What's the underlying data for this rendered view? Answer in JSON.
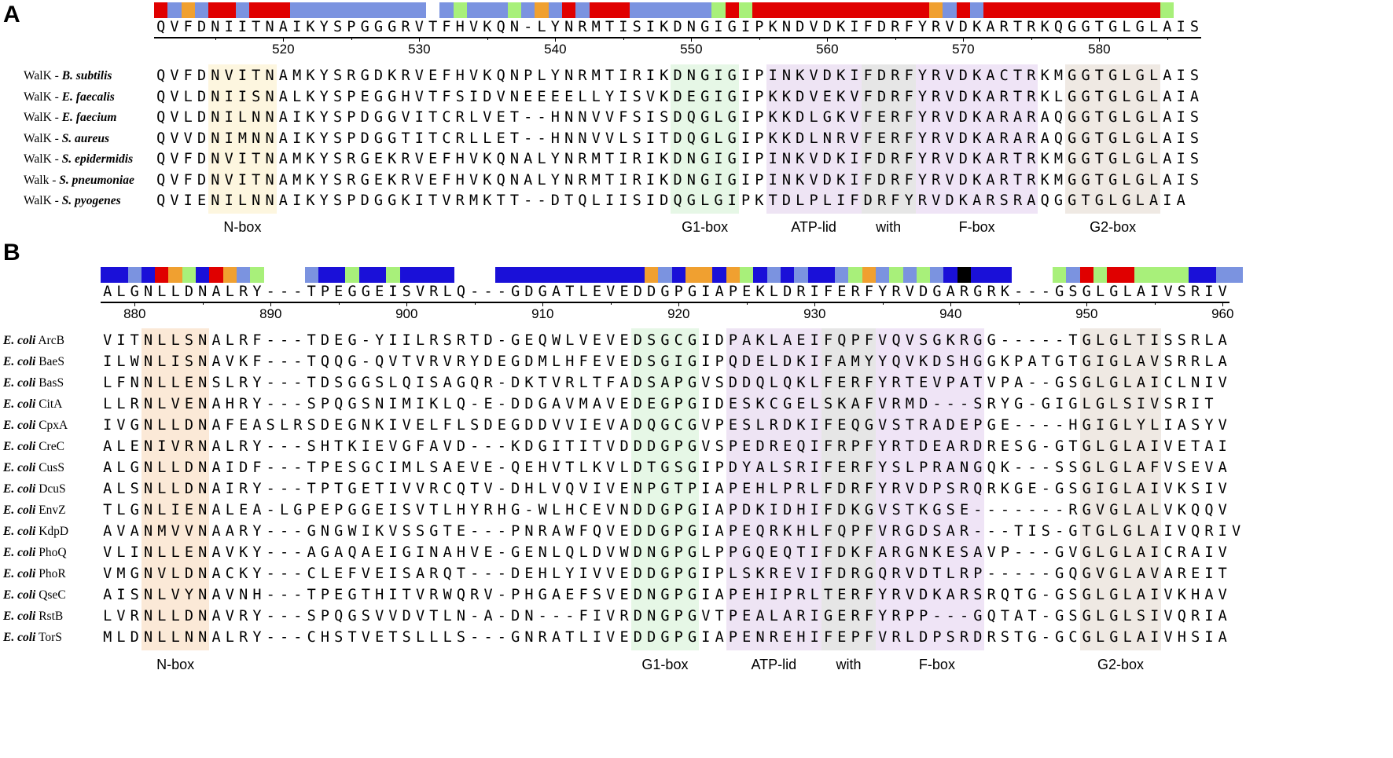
{
  "colors": {
    "red": "#e00000",
    "lightblue": "#7b93e0",
    "orange": "#f0a030",
    "lightgreen": "#a8f07a",
    "darkblue": "#1a10d8",
    "black": "#000000",
    "nbox_A": "#fdf6df",
    "nbox_B": "#fbe9d7",
    "g1box": "#e6f7e6",
    "atplid": "#eee4f4",
    "with": "#e6e6e6",
    "fbox": "#efe4f6",
    "g2box": "#efe9e3"
  },
  "panel_a": {
    "letter": "A",
    "consensus": "QVFDNIITNAIKYSPGGGRVTFHVKQN-LYNRMTISIKDNGIGIPKNDVDKIFDRFYRVDKARTRKQGGTGLGLAIS",
    "bar_segments": "rbobrrbrrrbbbbbbbbbb_bgbbbgbobrbrrrbbbbbbgrgrrrrrrrrrrrrrobrbrrrrrrrrrrrrrg",
    "ticks": [
      "520",
      "530",
      "540",
      "550",
      "560",
      "570",
      "580"
    ],
    "rows": [
      {
        "prefix": "WalK - ",
        "species": "B. subtilis",
        "seq": "QVFDNVITNAMKYSRGDKRVEFHVKQNPLYNRMTIRIKDNGIGIPINKVDKIFDRFYRVDKACTRKMGGTGLGLAIS"
      },
      {
        "prefix": "WalK - ",
        "species": "E. faecalis",
        "seq": "QVLDNIISNALKYSPEGGHVTFSIDVNEEEELLYISVKDEGIGIPKKDVEKVFDRFYRVDKARTRKLGGTGLGLAIA"
      },
      {
        "prefix": "WalK  - ",
        "species": "E. faecium",
        "seq": "QVLDNILNNAIKYSPDGGVITCRLVET--HNNVVFSISDQGLGIPKKDLGKVFERFYRVDKARARAQGGTGLGLAIS"
      },
      {
        "prefix": "WalK  - ",
        "species": "S. aureus",
        "seq": "QVVDNIMNNAIKYSPDGGTITCRLLET--HNNVVLSITDQGLGIPKKDLNRVFERFYRVDKARARAQGGTGLGLAIS"
      },
      {
        "prefix": "WalK - ",
        "species": "S. epidermidis",
        "seq": "QVFDNVITNAMKYSRGEKRVEFHVKQNALYNRMTIRIKDNGIGIPINKVDKIFDRFYRVDKARTRKMGGTGLGLAIS"
      },
      {
        "prefix": "Walk - ",
        "species": "S. pneumoniae",
        "seq": "QVFDNVITNAMKYSRGEKRVEFHVKQNALYNRMTIRIKDNGIGIPINKVDKIFDRFYRVDKARTRKMGGTGLGLAIS"
      },
      {
        "prefix": "WalK - ",
        "species": "S. pyogenes",
        "seq": "QVIENILNNAIKYSPDGGKITVRMKTT--DTQLIISIDQGLGIPKTDLPLIFDRFYRVDKARSRAQGGTGLGLAIA"
      }
    ],
    "box_labels": [
      "N-box",
      "G1-box",
      "ATP-lid",
      "with",
      "F-box",
      "G2-box"
    ]
  },
  "panel_b": {
    "letter": "B",
    "consensus": "ALGNLLDNALRY---TPEGGEISVRLQ---GDGATLEVEDDGPGIAPEKLDRIFERFYRVDGARGRK---GSGLGLAIVSRIV",
    "bar_segments": "ddbdrogdrobg___bddgddgdddd___dddddddddddobdoodogdbdbddbgobgbgbdkddd___gbrgrrggggddbb",
    "ticks": [
      "880",
      "890",
      "900",
      "910",
      "920",
      "930",
      "940",
      "950",
      "960"
    ],
    "rows": [
      {
        "prefix": "E. coli",
        "name": "ArcB",
        "seq": "VITNLLSNALRF---TDEG-YIILRSRTD-GEQWLVEVEDSGCGIDPAKLAEIFQPFVQVSGKRGG-----TGLGLTISSRLA"
      },
      {
        "prefix": "E. coli",
        "name": "BaeS",
        "seq": "ILWNLISNAVKF---TQQG-QVTVRVRYDEGDMLHFEVEDSGIGIPQDELDKIFAMYYQVKDSHGGKPATGTGIGLAVSRRLA"
      },
      {
        "prefix": "E. coli",
        "name": "BasS",
        "seq": "LFNNLLENSLRY---TDSGGSLQISAGQR-DKTVRLTFADSAPGVSDDQLQKLFERFYRTEVPATVPA--GSGLGLAICLNIV"
      },
      {
        "prefix": "E. coli",
        "name": "CitA",
        "seq": "LLRNLVENAHRY---SPQGSNIMIKLQ-E-DDGAVMAVEDEGPGIDESKCGELSKAFVRMD---SRYG-GIGLGLSIVSRIT"
      },
      {
        "prefix": "E. coli",
        "name": "CpxA",
        "seq": "IVGNLLDNAFEASLRSDEGNKIVELFLSDEGDDVVIEVADQGCGVPESLRDKIFEQGVSTRADEPGE----HGIGLYLIASYV"
      },
      {
        "prefix": "E. coli",
        "name": "CreC",
        "seq": "ALENIVRNALRY---SHTKIEVGFAVD---KDGITITVDDDGPGVSPEDREQIFRPFYRTDEARDRESG-GTGLGLAIVETAI"
      },
      {
        "prefix": "E. coli",
        "name": "CusS",
        "seq": "ALGNLLDNAIDF---TPESGCIMLSAEVE-QEHVTLKVLDTGSGIPDYALSRIFERFYSLPRANGQK---SSGLGLAFVSEVA"
      },
      {
        "prefix": "E. coli",
        "name": "DcuS",
        "seq": "ALSNLLDNAIRY---TPTGETIVVRCQTV-DHLVQVIVENPGTPIAPEHLPRLFDRFYRVDPSRQRKGE-GSGIGLAIVKSIV"
      },
      {
        "prefix": "E. coli",
        "name": "EnvZ",
        "seq": "TLGNLIENALEA-LGPEPGGEISVTLHYRHG-WLHCEVNDDGPGIAPDKIDHIFDKGVSTKGSE-------RGVGLALVKQQV"
      },
      {
        "prefix": "E. coli",
        "name": "KdpD",
        "seq": "AVANMVVNAARY---GNGWIKVSSGTE---PNRAWFQVEDDGPGIAPEQRKHLFQPFVRGDSAR---TIS-GTGLGLAIVQRIV"
      },
      {
        "prefix": "E. coli",
        "name": "PhoQ",
        "seq": "VLINLLENAVKY---AGAQAEIGINAHVE-GENLQLDVWDNGPGLPPGQEQTIFDKFARGNKESAVP---GVGLGLAICRAIV"
      },
      {
        "prefix": "E. coli",
        "name": "PhoR",
        "seq": "VMGNVLDNACKY---CLEFVEISARQT---DEHLYIVVEDDGPGIPLSKREVIFDRGQRVDTLRP-----GQGVGLAVAREIT"
      },
      {
        "prefix": "E. coli",
        "name": "QseC",
        "seq": "AISNLVYNAVNH---TPEGTHITVRWQRV-PHGAEFSVEDNGPGIAPEHIPRLTERFYRVDKARSRQTG-GSGLGLAIVKHAV"
      },
      {
        "prefix": "E. coli",
        "name": "RstB",
        "seq": "LVRNLLDNAVRY---SPQGSVVDVTLN-A-DN---FIVRDNGPGVTPEALARIGERFYRPP---GQTAT-GSGLGLSIVQRIA"
      },
      {
        "prefix": "E. coli",
        "name": "TorS",
        "seq": "MLDNLLNNALRY---CHSTVETSLLLS---GNRATLIVEDDGPGIAPENREHIFEPFVRLDPSRDRSTG-GCGLGLAIVHSIA"
      }
    ],
    "box_labels": [
      "N-box",
      "G1-box",
      "ATP-lid",
      "with",
      "F-box",
      "G2-box"
    ]
  }
}
